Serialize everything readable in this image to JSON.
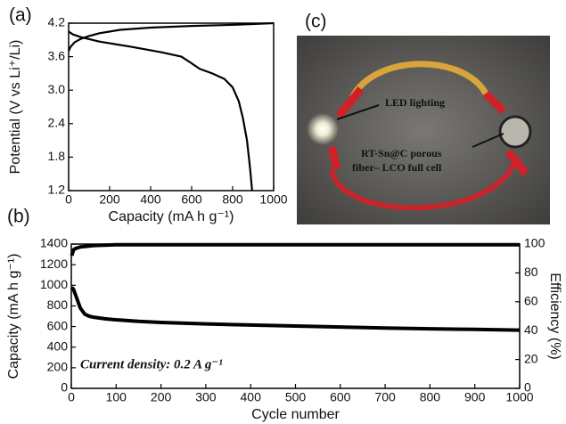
{
  "chart_data": [
    {
      "type": "line",
      "label": "(a)",
      "xlabel": "Capacity (mA h g⁻¹)",
      "ylabel": "Potential (V vs Li⁺/Li)",
      "xlim": [
        0,
        1000
      ],
      "xticks": [
        0,
        200,
        400,
        600,
        800,
        1000
      ],
      "ylim": [
        1.2,
        4.2
      ],
      "yticks": [
        1.2,
        1.8,
        2.4,
        {
          "value": 3,
          "label": "3.0"
        },
        3.6,
        4.2
      ],
      "series": [
        {
          "color": "#000000",
          "x": [
            0,
            10,
            30,
            60,
            100,
            150,
            250,
            400,
            600,
            800,
            1000
          ],
          "values": [
            3.7,
            3.78,
            3.86,
            3.92,
            3.97,
            4.02,
            4.08,
            4.12,
            4.15,
            4.17,
            4.2
          ]
        },
        {
          "color": "#000000",
          "x": [
            0,
            20,
            60,
            150,
            300,
            450,
            550,
            600,
            640,
            700,
            760,
            800,
            830,
            850,
            870,
            885,
            895
          ],
          "values": [
            4.05,
            4.0,
            3.95,
            3.87,
            3.78,
            3.68,
            3.6,
            3.48,
            3.38,
            3.3,
            3.2,
            3.05,
            2.8,
            2.5,
            2.1,
            1.6,
            1.2
          ]
        }
      ]
    },
    {
      "type": "line",
      "label": "(b)",
      "xlabel": "Cycle number",
      "ylabel": "Capacity (mA h g⁻¹)",
      "y2label": "Efficiency (%)",
      "annotation": "Current density: 0.2 A g⁻¹",
      "xlim": [
        0,
        1000
      ],
      "xticks": [
        0,
        100,
        200,
        300,
        400,
        500,
        600,
        700,
        800,
        900,
        1000
      ],
      "ylim": [
        0,
        1400
      ],
      "yticks": [
        0,
        200,
        400,
        600,
        800,
        1000,
        1200,
        1400
      ],
      "y2lim": [
        0,
        100
      ],
      "y2ticks": [
        0,
        20,
        40,
        60,
        80,
        100
      ],
      "series": [
        {
          "color": "#000000",
          "x": [
            1,
            5,
            10,
            20,
            30,
            40,
            50,
            75,
            100,
            150,
            200,
            300,
            400,
            500,
            600,
            700,
            800,
            900,
            1000
          ],
          "values": [
            980,
            960,
            900,
            780,
            720,
            700,
            690,
            675,
            665,
            650,
            640,
            625,
            615,
            605,
            595,
            585,
            578,
            572,
            565
          ]
        },
        {
          "color": "#000000",
          "axis": "y2",
          "x": [
            1,
            3,
            5,
            10,
            20,
            50,
            100,
            200,
            500,
            1000
          ],
          "values": [
            92,
            94,
            96,
            97,
            98,
            99,
            99.5,
            99.5,
            99.5,
            99.5
          ]
        }
      ]
    }
  ],
  "photo": {
    "label": "(c)",
    "annotations": [
      "LED lighting",
      [
        "RT-Sn@C porous",
        "fiber– LCO full cell"
      ]
    ]
  }
}
